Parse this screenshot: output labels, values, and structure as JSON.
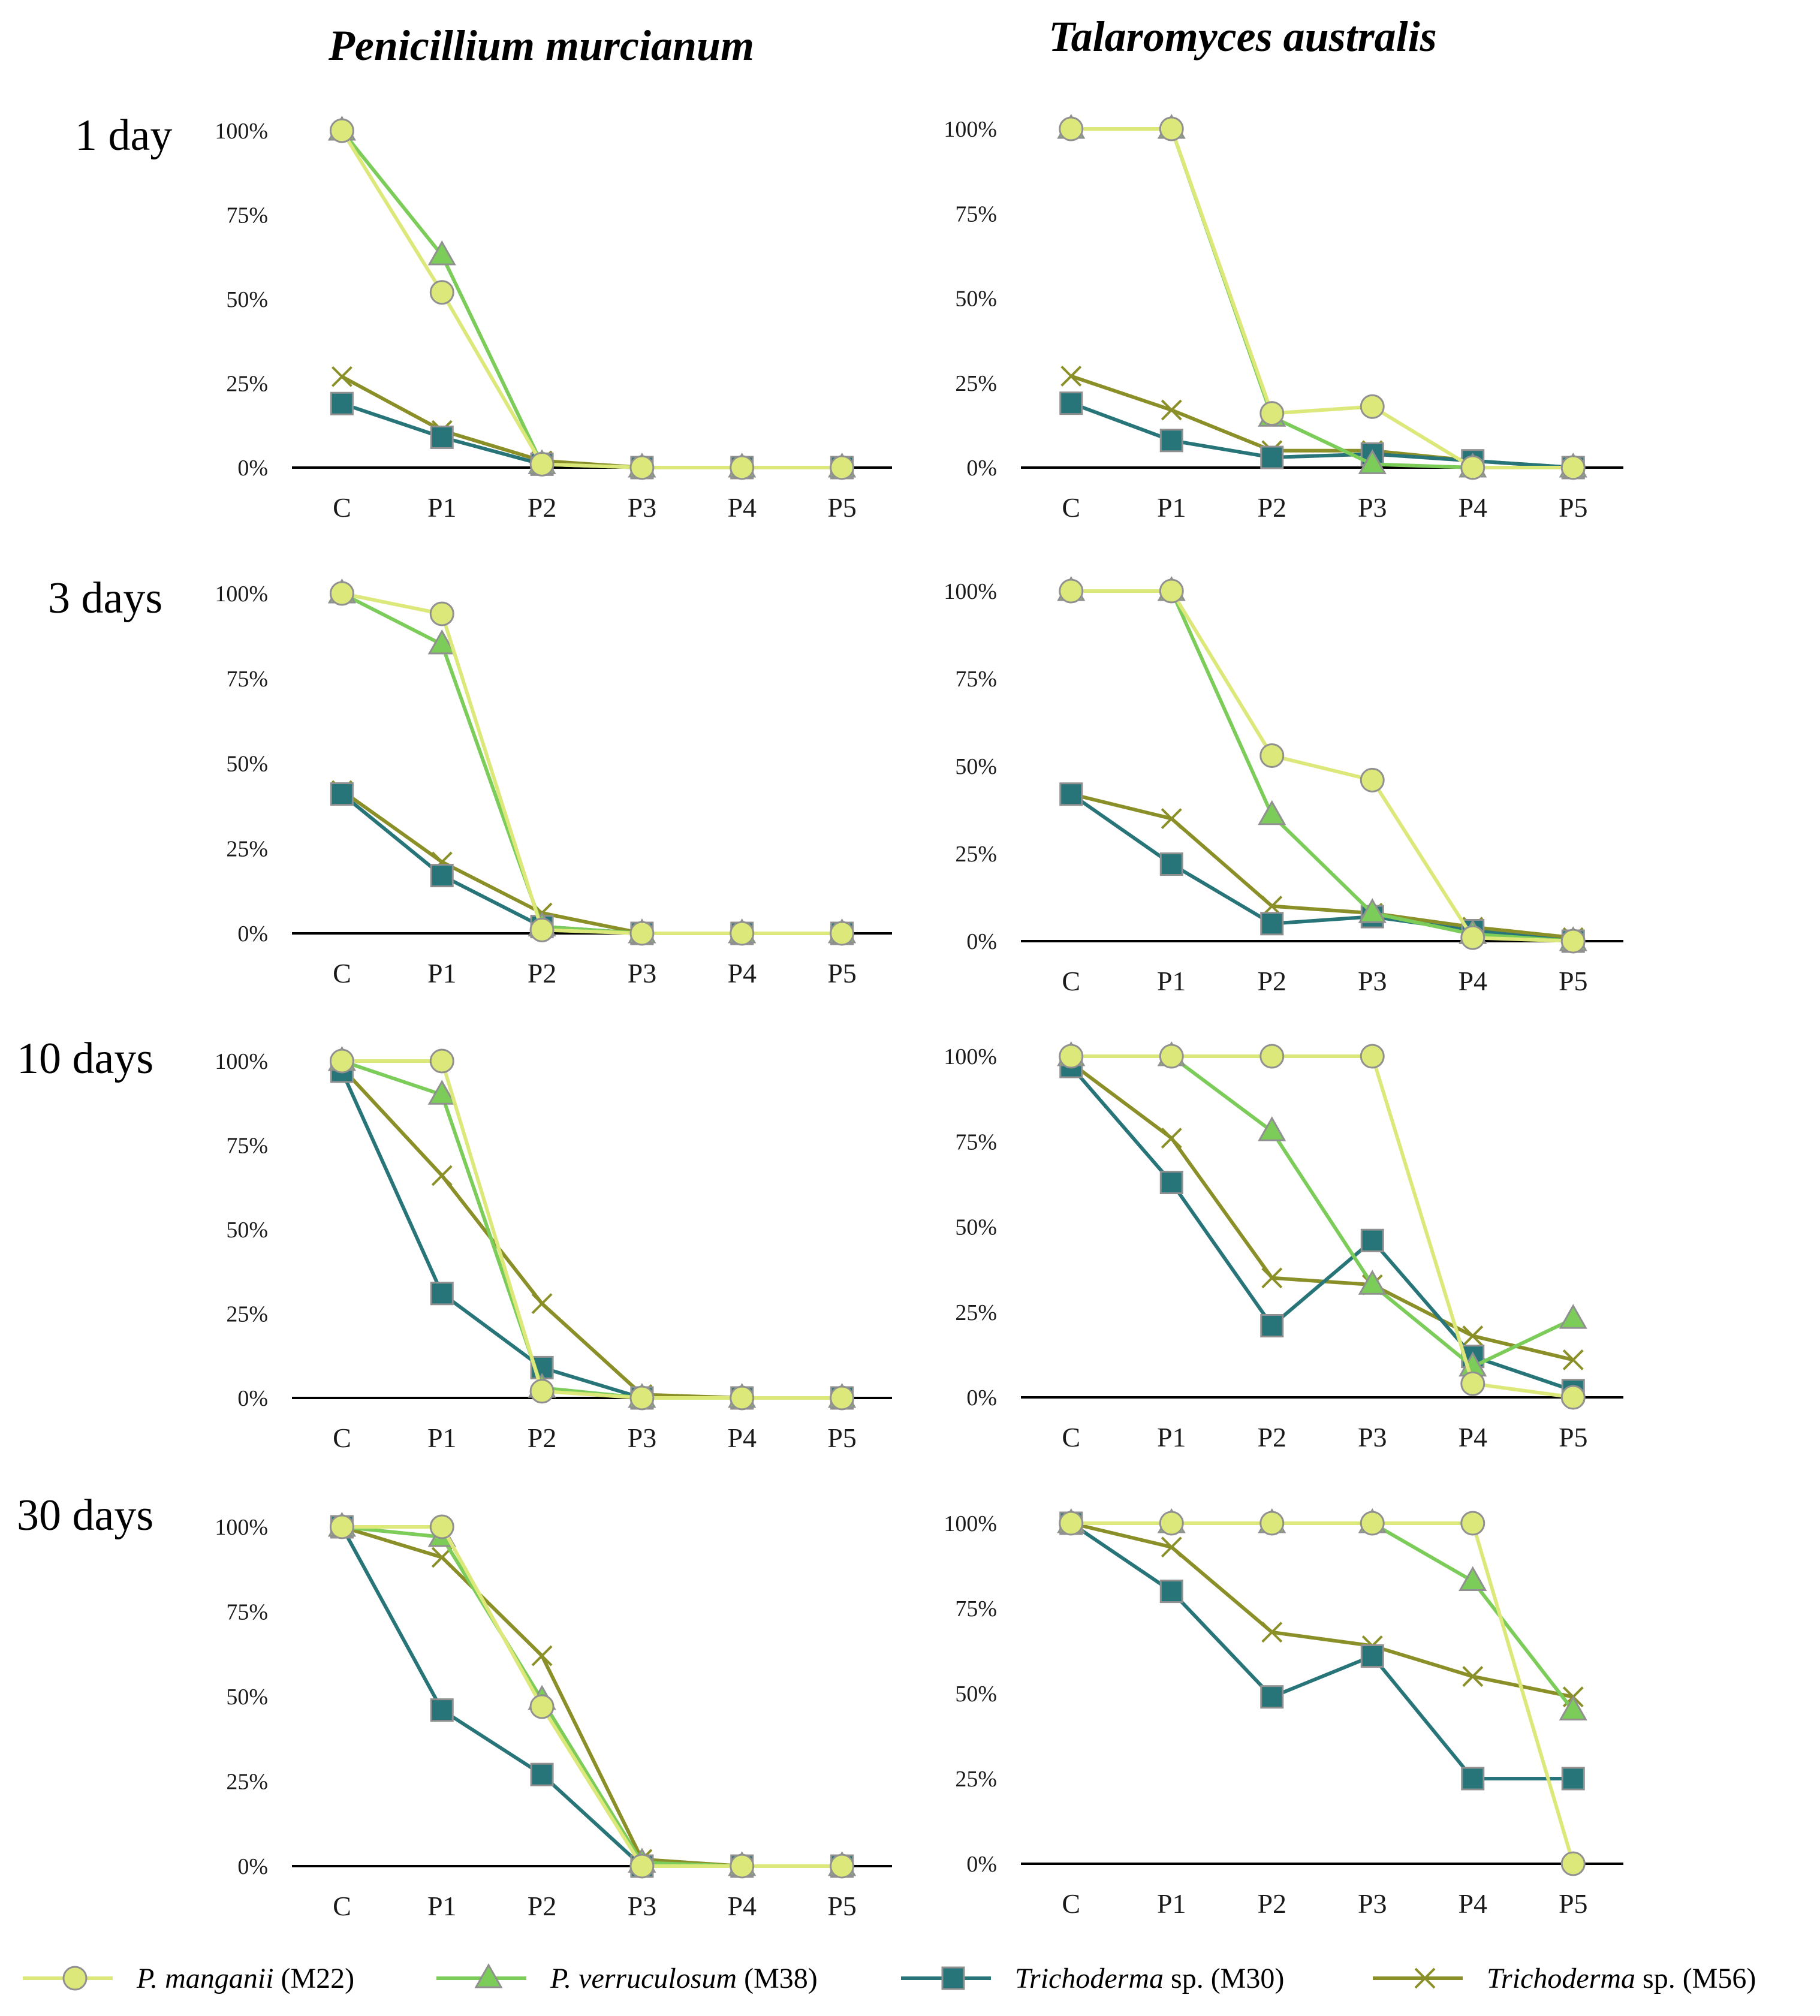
{
  "column_titles": [
    "Penicillium murcianum",
    "Talaromyces australis"
  ],
  "row_labels": [
    "1 day",
    "3 days",
    "10 days",
    "30 days"
  ],
  "colors": {
    "M22": "#dde87a",
    "M38": "#7ccc5a",
    "M30": "#287579",
    "M56": "#8a8f28",
    "marker_stroke": "#909090",
    "axis": "#000000"
  },
  "legend": [
    {
      "key": "M22",
      "italic": "P. manganii",
      "rest": " (M22)",
      "marker": "circle"
    },
    {
      "key": "M38",
      "italic": "P. verruculosum",
      "rest": " (M38)",
      "marker": "triangle"
    },
    {
      "key": "M30",
      "italic": "Trichoderma",
      "rest": " sp. (M30)",
      "marker": "square"
    },
    {
      "key": "M56",
      "italic": "Trichoderma",
      "rest": " sp. (M56)",
      "marker": "x"
    }
  ],
  "chart_data": [
    {
      "type": "line",
      "column": "Penicillium murcianum",
      "row": "1 day",
      "categories": [
        "C",
        "P1",
        "P2",
        "P3",
        "P4",
        "P5"
      ],
      "yticks": [
        "0%",
        "25%",
        "50%",
        "75%",
        "100%"
      ],
      "ylim": [
        0,
        100
      ],
      "series": [
        {
          "key": "M22",
          "values": [
            100,
            52,
            1,
            0,
            0,
            0
          ]
        },
        {
          "key": "M38",
          "values": [
            100,
            63,
            1,
            0,
            0,
            0
          ]
        },
        {
          "key": "M30",
          "values": [
            19,
            9,
            1,
            0,
            0,
            0
          ]
        },
        {
          "key": "M56",
          "values": [
            27,
            11,
            2,
            0,
            0,
            0
          ]
        }
      ]
    },
    {
      "type": "line",
      "column": "Talaromyces australis",
      "row": "1 day",
      "categories": [
        "C",
        "P1",
        "P2",
        "P3",
        "P4",
        "P5"
      ],
      "yticks": [
        "0%",
        "25%",
        "50%",
        "75%",
        "100%"
      ],
      "ylim": [
        0,
        100
      ],
      "series": [
        {
          "key": "M22",
          "values": [
            100,
            100,
            16,
            18,
            0,
            0
          ]
        },
        {
          "key": "M38",
          "values": [
            100,
            100,
            15,
            1,
            0,
            0
          ]
        },
        {
          "key": "M30",
          "values": [
            19,
            8,
            3,
            4,
            2,
            0
          ]
        },
        {
          "key": "M56",
          "values": [
            27,
            17,
            5,
            5,
            2,
            0
          ]
        }
      ]
    },
    {
      "type": "line",
      "column": "Penicillium murcianum",
      "row": "3 days",
      "categories": [
        "C",
        "P1",
        "P2",
        "P3",
        "P4",
        "P5"
      ],
      "yticks": [
        "0%",
        "25%",
        "50%",
        "75%",
        "100%"
      ],
      "ylim": [
        0,
        100
      ],
      "series": [
        {
          "key": "M22",
          "values": [
            100,
            94,
            1,
            0,
            0,
            0
          ]
        },
        {
          "key": "M38",
          "values": [
            100,
            85,
            2,
            0,
            0,
            0
          ]
        },
        {
          "key": "M30",
          "values": [
            41,
            17,
            2,
            0,
            0,
            0
          ]
        },
        {
          "key": "M56",
          "values": [
            42,
            21,
            6,
            0,
            0,
            0
          ]
        }
      ]
    },
    {
      "type": "line",
      "column": "Talaromyces australis",
      "row": "3 days",
      "categories": [
        "C",
        "P1",
        "P2",
        "P3",
        "P4",
        "P5"
      ],
      "yticks": [
        "0%",
        "25%",
        "50%",
        "75%",
        "100%"
      ],
      "ylim": [
        0,
        100
      ],
      "series": [
        {
          "key": "M22",
          "values": [
            100,
            100,
            53,
            46,
            1,
            0
          ]
        },
        {
          "key": "M38",
          "values": [
            100,
            100,
            36,
            8,
            2,
            0
          ]
        },
        {
          "key": "M30",
          "values": [
            42,
            22,
            5,
            7,
            3,
            0
          ]
        },
        {
          "key": "M56",
          "values": [
            42,
            35,
            10,
            8,
            4,
            1
          ]
        }
      ]
    },
    {
      "type": "line",
      "column": "Penicillium murcianum",
      "row": "10 days",
      "categories": [
        "C",
        "P1",
        "P2",
        "P3",
        "P4",
        "P5"
      ],
      "yticks": [
        "0%",
        "25%",
        "50%",
        "75%",
        "100%"
      ],
      "ylim": [
        0,
        100
      ],
      "series": [
        {
          "key": "M22",
          "values": [
            100,
            100,
            2,
            0,
            0,
            0
          ]
        },
        {
          "key": "M38",
          "values": [
            100,
            90,
            3,
            0,
            0,
            0
          ]
        },
        {
          "key": "M30",
          "values": [
            97,
            31,
            9,
            0,
            0,
            0
          ]
        },
        {
          "key": "M56",
          "values": [
            98,
            66,
            28,
            1,
            0,
            0
          ]
        }
      ]
    },
    {
      "type": "line",
      "column": "Talaromyces australis",
      "row": "10 days",
      "categories": [
        "C",
        "P1",
        "P2",
        "P3",
        "P4",
        "P5"
      ],
      "yticks": [
        "0%",
        "25%",
        "50%",
        "75%",
        "100%"
      ],
      "ylim": [
        0,
        100
      ],
      "series": [
        {
          "key": "M22",
          "values": [
            100,
            100,
            100,
            100,
            4,
            0
          ]
        },
        {
          "key": "M38",
          "values": [
            100,
            100,
            78,
            33,
            9,
            23
          ]
        },
        {
          "key": "M30",
          "values": [
            97,
            63,
            21,
            46,
            12,
            2
          ]
        },
        {
          "key": "M56",
          "values": [
            98,
            76,
            35,
            33,
            18,
            11
          ]
        }
      ]
    },
    {
      "type": "line",
      "column": "Penicillium murcianum",
      "row": "30 days",
      "categories": [
        "C",
        "P1",
        "P2",
        "P3",
        "P4",
        "P5"
      ],
      "yticks": [
        "0%",
        "25%",
        "50%",
        "75%",
        "100%"
      ],
      "ylim": [
        0,
        100
      ],
      "series": [
        {
          "key": "M22",
          "values": [
            100,
            100,
            47,
            0,
            0,
            0
          ]
        },
        {
          "key": "M38",
          "values": [
            100,
            97,
            49,
            1,
            0,
            0
          ]
        },
        {
          "key": "M30",
          "values": [
            100,
            46,
            27,
            0,
            0,
            0
          ]
        },
        {
          "key": "M56",
          "values": [
            100,
            91,
            62,
            2,
            0,
            0
          ]
        }
      ]
    },
    {
      "type": "line",
      "column": "Talaromyces australis",
      "row": "30 days",
      "categories": [
        "C",
        "P1",
        "P2",
        "P3",
        "P4",
        "P5"
      ],
      "yticks": [
        "0%",
        "25%",
        "50%",
        "75%",
        "100%"
      ],
      "ylim": [
        0,
        100
      ],
      "series": [
        {
          "key": "M22",
          "values": [
            100,
            100,
            100,
            100,
            100,
            0
          ]
        },
        {
          "key": "M38",
          "values": [
            100,
            100,
            100,
            100,
            83,
            45
          ]
        },
        {
          "key": "M30",
          "values": [
            100,
            80,
            49,
            61,
            25,
            25
          ]
        },
        {
          "key": "M56",
          "values": [
            100,
            93,
            68,
            64,
            55,
            49
          ]
        }
      ]
    }
  ]
}
